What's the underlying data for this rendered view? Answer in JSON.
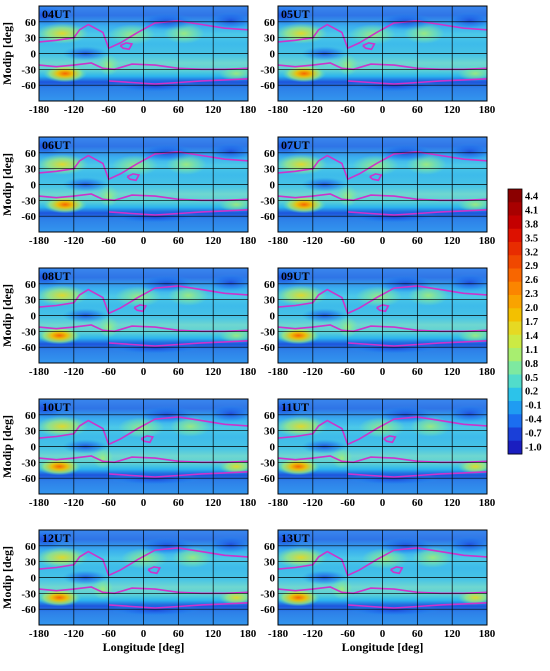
{
  "chart_data": {
    "type": "heatmap",
    "panel_grid": {
      "rows": 5,
      "cols": 2
    },
    "panels": [
      {
        "label": "04UT",
        "utc_hour": 4
      },
      {
        "label": "05UT",
        "utc_hour": 5
      },
      {
        "label": "06UT",
        "utc_hour": 6
      },
      {
        "label": "07UT",
        "utc_hour": 7
      },
      {
        "label": "08UT",
        "utc_hour": 8
      },
      {
        "label": "09UT",
        "utc_hour": 9
      },
      {
        "label": "10UT",
        "utc_hour": 10
      },
      {
        "label": "11UT",
        "utc_hour": 11
      },
      {
        "label": "12UT",
        "utc_hour": 12
      },
      {
        "label": "13UT",
        "utc_hour": 13
      }
    ],
    "xlabel": "Longitude [deg]",
    "ylabel": "Modip [deg]",
    "xlim": [
      -180,
      180
    ],
    "ylim": [
      -90,
      90
    ],
    "xticks": [
      -180,
      -120,
      -60,
      0,
      60,
      120,
      180
    ],
    "yticks": [
      60,
      30,
      0,
      -30,
      -60
    ],
    "grid": true,
    "contour_color": "#cc33cc",
    "colorbar": {
      "labels": [
        "4.4",
        "4.1",
        "3.8",
        "3.5",
        "3.2",
        "2.9",
        "2.6",
        "2.3",
        "2.0",
        "1.7",
        "1.4",
        "1.1",
        "0.8",
        "0.5",
        "0.2",
        "-0.1",
        "-0.4",
        "-0.7",
        "-1.0"
      ],
      "colors": [
        "#8b0000",
        "#a80000",
        "#c40000",
        "#dd1100",
        "#e82c00",
        "#f04800",
        "#f86600",
        "#fb8500",
        "#f9a300",
        "#f3c000",
        "#e6d923",
        "#ccea44",
        "#a8ee70",
        "#7ee9a0",
        "#52dccb",
        "#2cc3ea",
        "#1f9cf2",
        "#1b6ef0",
        "#1a3fd8",
        "#1a1ec0"
      ]
    }
  }
}
